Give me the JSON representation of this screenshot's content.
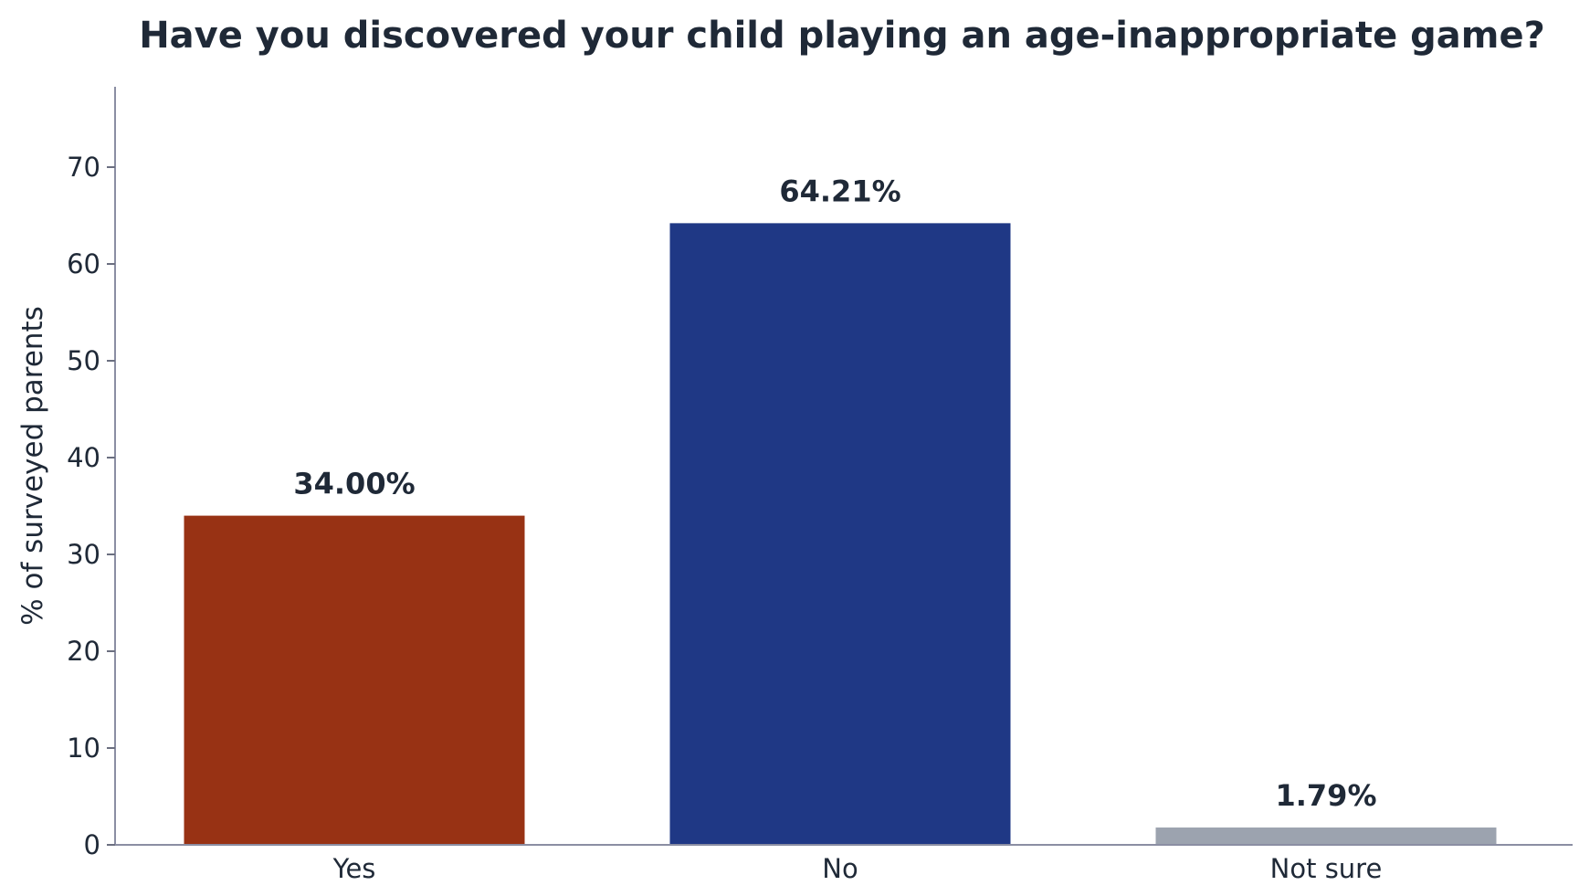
{
  "chart_data": {
    "type": "bar",
    "title": "Have you discovered your child playing an age-inappropriate game?",
    "xlabel": "",
    "ylabel": "% of surveyed parents",
    "categories": [
      "Yes",
      "No",
      "Not sure"
    ],
    "values": [
      34.0,
      64.21,
      1.79
    ],
    "value_labels": [
      "34.00%",
      "64.21%",
      "1.79%"
    ],
    "colors": [
      "#983214",
      "#1f3885",
      "#9ca3af"
    ],
    "ylim": [
      0,
      78
    ],
    "yticks": [
      0,
      10,
      20,
      30,
      40,
      50,
      60,
      70
    ],
    "grid": false,
    "legend": "none"
  }
}
